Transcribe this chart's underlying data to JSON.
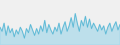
{
  "y": [
    3.5,
    3.2,
    3.8,
    2.9,
    3.6,
    3.1,
    3.4,
    2.8,
    3.3,
    3.0,
    3.5,
    3.2,
    2.7,
    3.4,
    3.1,
    3.7,
    3.3,
    2.9,
    3.4,
    3.0,
    3.6,
    3.2,
    4.0,
    3.1,
    3.7,
    3.3,
    3.0,
    3.5,
    3.2,
    3.8,
    3.0,
    3.5,
    3.9,
    3.2,
    3.6,
    4.2,
    3.5,
    4.5,
    3.8,
    3.2,
    4.0,
    3.6,
    4.3,
    3.5,
    4.1,
    3.4,
    3.8,
    3.5,
    3.2,
    3.7,
    3.3,
    3.6,
    3.0,
    3.5,
    3.8,
    3.2,
    3.6,
    3.9,
    3.3,
    3.7
  ],
  "line_color": "#5bb8d4",
  "fill_color": "#a8d8ea",
  "background_color": "#f0f0f0",
  "linewidth": 0.6,
  "ylim": [
    2.2,
    5.5
  ],
  "figwidth": 1.2,
  "figheight": 0.45,
  "dpi": 100
}
